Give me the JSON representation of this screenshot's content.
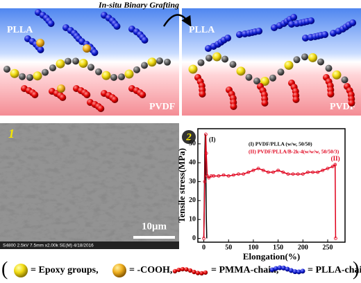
{
  "schematic": {
    "arrow_label": "In-situ Binary Grafting",
    "left": {
      "top_label": "PLLA",
      "bottom_label": "PVDF"
    },
    "right": {
      "top_label": "PLLA",
      "bottom_label": "PVDF"
    }
  },
  "sem": {
    "panel_label": "1",
    "scale_bar": "10μm",
    "footer": "S4800 2.5kV 7.5mm x2.00k SE(M) 4/18/2016"
  },
  "chart_data": {
    "type": "line",
    "panel_label": "2",
    "x_label": "Elongation(%)",
    "y_label": "Tensile stress(MPa)",
    "xlim": [
      -12,
      285
    ],
    "ylim": [
      -2,
      58
    ],
    "xticks": [
      0,
      50,
      100,
      150,
      200,
      250
    ],
    "yticks": [
      0,
      10,
      20,
      30,
      40,
      50
    ],
    "series": [
      {
        "name": "(I) PVDF/PLLA (w/w, 50/50)",
        "color": "#000000",
        "annotation": "(I)",
        "x": [
          0,
          1,
          2,
          3,
          4,
          5,
          6
        ],
        "values": [
          0,
          20,
          45,
          55,
          40,
          12,
          0
        ]
      },
      {
        "name": "(II) PVDF/PLLA/B-2k-4(w/w/w, 50/50/3)",
        "color": "#e0001b",
        "annotation": "(II)",
        "x": [
          0,
          2,
          4,
          5,
          7,
          10,
          15,
          20,
          30,
          40,
          50,
          60,
          70,
          80,
          90,
          100,
          110,
          120,
          130,
          140,
          150,
          160,
          170,
          180,
          190,
          200,
          210,
          220,
          230,
          240,
          250,
          260,
          265,
          266
        ],
        "values": [
          0,
          30,
          55,
          45,
          33,
          32,
          33,
          33,
          33,
          33.5,
          33,
          33.5,
          34,
          34,
          35,
          36,
          37,
          36,
          35,
          35,
          36,
          35,
          34,
          34,
          34,
          34,
          35,
          35,
          35,
          36,
          37,
          38,
          39,
          0
        ]
      }
    ]
  },
  "legend": {
    "open": "(",
    "close": ")",
    "epoxy": "= Epoxy groups,",
    "cooh": "= -COOH,",
    "pmma": "= PMMA-chain,",
    "plla": "= PLLA-chain"
  }
}
